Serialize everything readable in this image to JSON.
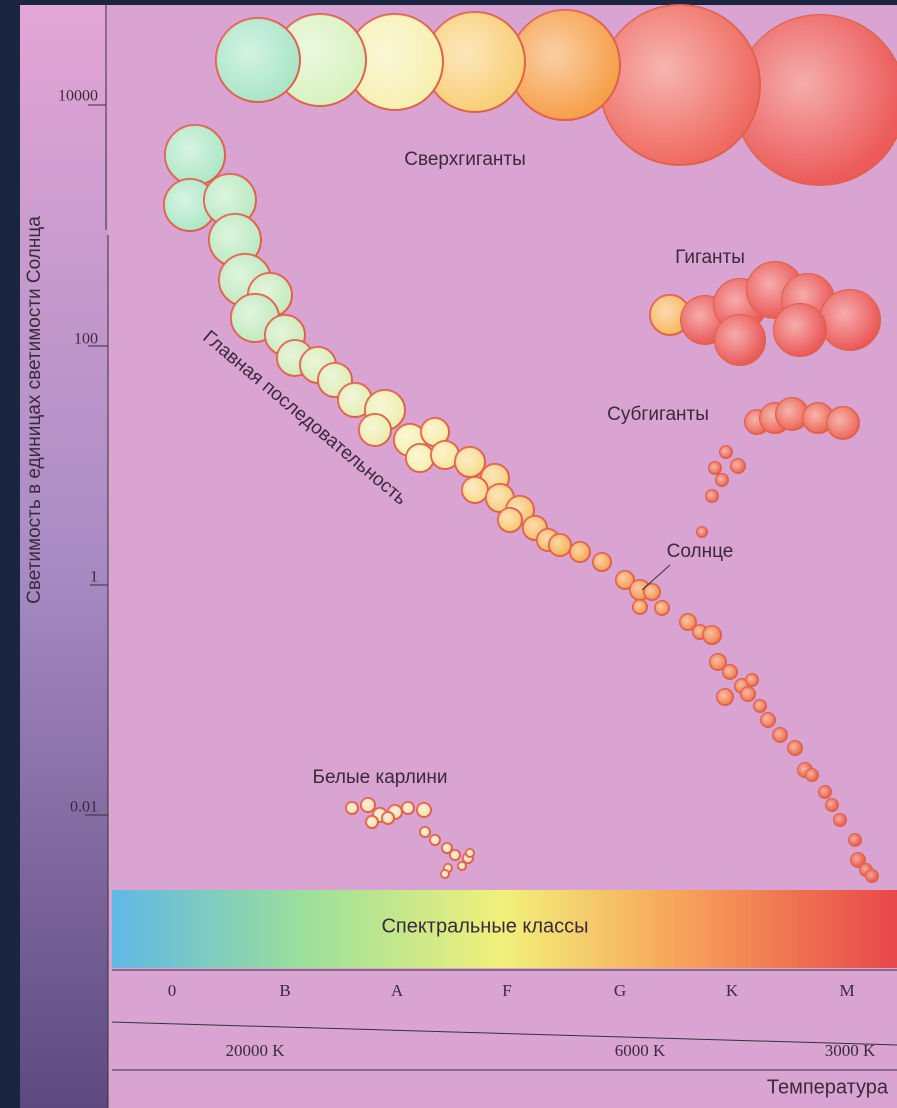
{
  "axis": {
    "label": "Светимость в единицах светимости Солнца",
    "ticks": [
      "10000",
      "100",
      "1",
      "0.01"
    ]
  },
  "groups": {
    "supergiants": "Сверхгиганты",
    "giants": "Гиганты",
    "subgiants": "Субгиганты",
    "main_sequence": "Главная последовательность",
    "sun": "Солнце",
    "white_dwarfs": "Белые карлини"
  },
  "spectrum": {
    "title": "Спектральные классы",
    "classes": [
      "0",
      "B",
      "A",
      "F",
      "G",
      "K",
      "M"
    ]
  },
  "temperature": {
    "labels": [
      "20000 K",
      "6000 K",
      "3000 K"
    ],
    "title": "Температура"
  }
}
